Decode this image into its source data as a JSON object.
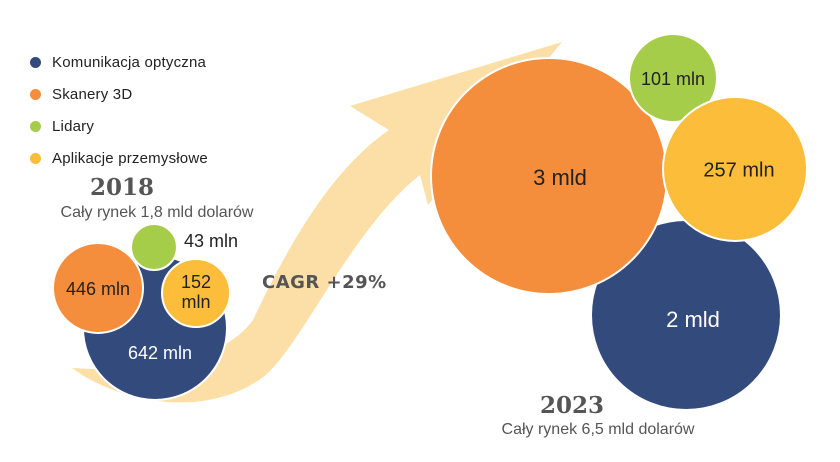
{
  "colors": {
    "optical": "#334a7c",
    "scanners": "#f48e3c",
    "lidars": "#a6cd4a",
    "industrial": "#fcbd3a",
    "arrow": "#fbdfa7"
  },
  "legend": [
    {
      "label": "Komunikacja optyczna",
      "color": "#334a7c"
    },
    {
      "label": "Skanery 3D",
      "color": "#f48e3c"
    },
    {
      "label": "Lidary",
      "color": "#a6cd4a"
    },
    {
      "label": "Aplikacje przemysłowe",
      "color": "#fcbd3a"
    }
  ],
  "growth": {
    "label": "CAGR +29%"
  },
  "chart_data": {
    "type": "bubble",
    "series": [
      "Komunikacja optyczna",
      "Skanery 3D",
      "Lidary",
      "Aplikacje przemysłowe"
    ],
    "groups": [
      {
        "year": "2018",
        "total_label": "Cały rynek 1,8 mld dolarów",
        "total_usd_mln": 1800,
        "items": [
          {
            "series": "Komunikacja optyczna",
            "value_mln": 642,
            "label": "642 mln",
            "label_color": "#ffffff"
          },
          {
            "series": "Skanery 3D",
            "value_mln": 446,
            "label": "446 mln",
            "label_color": "#222222"
          },
          {
            "series": "Lidary",
            "value_mln": 43,
            "label": "43 mln",
            "label_color": "#222222"
          },
          {
            "series": "Aplikacje przemysłowe",
            "value_mln": 152,
            "label": "152 mln",
            "label_color": "#222222"
          }
        ]
      },
      {
        "year": "2023",
        "total_label": "Cały rynek 6,5 mld dolarów",
        "total_usd_mln": 6500,
        "items": [
          {
            "series": "Komunikacja optyczna",
            "value_mln": 2000,
            "label": "2 mld",
            "label_color": "#ffffff"
          },
          {
            "series": "Skanery 3D",
            "value_mln": 3000,
            "label": "3 mld",
            "label_color": "#222222"
          },
          {
            "series": "Lidary",
            "value_mln": 101,
            "label": "101 mln",
            "label_color": "#222222"
          },
          {
            "series": "Aplikacje przemysłowe",
            "value_mln": 257,
            "label": "257 mln",
            "label_color": "#222222"
          }
        ]
      }
    ],
    "cagr": "+29%"
  }
}
